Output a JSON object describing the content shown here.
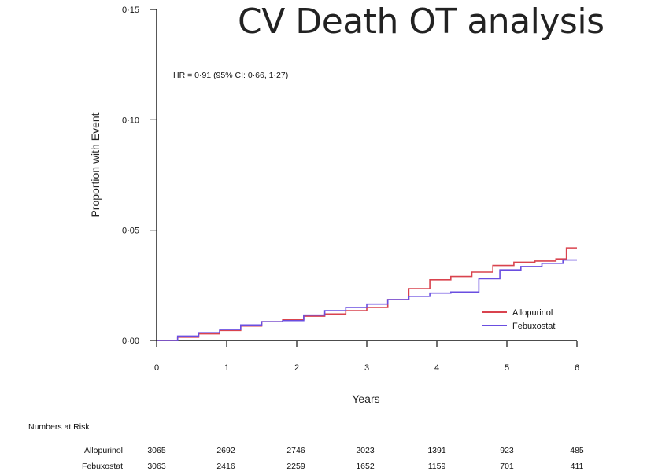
{
  "slide": {
    "title": "CV Death OT analysis"
  },
  "chart_data": {
    "type": "line",
    "title": "",
    "xlabel": "Years",
    "ylabel": "Proportion with Event",
    "xlim": [
      0,
      6
    ],
    "ylim": [
      0,
      0.15
    ],
    "x_ticks": [
      "0",
      "1",
      "2",
      "3",
      "4",
      "5",
      "6"
    ],
    "y_ticks": [
      "0·00",
      "0·05",
      "0·10",
      "0·15"
    ],
    "annotation": "HR = 0·91 (95% CI: 0·66, 1·27)",
    "legend_position": "bottom-right",
    "series": [
      {
        "name": "Allopurinol",
        "color": "#d9434e",
        "points": [
          [
            0,
            0
          ],
          [
            0.3,
            0.0015
          ],
          [
            0.6,
            0.003
          ],
          [
            0.9,
            0.0045
          ],
          [
            1.2,
            0.0065
          ],
          [
            1.5,
            0.0085
          ],
          [
            1.8,
            0.0095
          ],
          [
            2.1,
            0.011
          ],
          [
            2.4,
            0.012
          ],
          [
            2.7,
            0.0135
          ],
          [
            3.0,
            0.015
          ],
          [
            3.3,
            0.0185
          ],
          [
            3.6,
            0.0235
          ],
          [
            3.9,
            0.0275
          ],
          [
            4.2,
            0.029
          ],
          [
            4.5,
            0.031
          ],
          [
            4.8,
            0.034
          ],
          [
            5.1,
            0.0355
          ],
          [
            5.4,
            0.036
          ],
          [
            5.7,
            0.037
          ],
          [
            5.85,
            0.042
          ],
          [
            6.0,
            0.042
          ]
        ]
      },
      {
        "name": "Febuxostat",
        "color": "#6a4ee0",
        "points": [
          [
            0,
            0
          ],
          [
            0.3,
            0.002
          ],
          [
            0.6,
            0.0035
          ],
          [
            0.9,
            0.005
          ],
          [
            1.2,
            0.007
          ],
          [
            1.5,
            0.0085
          ],
          [
            1.8,
            0.009
          ],
          [
            2.1,
            0.0115
          ],
          [
            2.4,
            0.0135
          ],
          [
            2.7,
            0.015
          ],
          [
            3.0,
            0.0165
          ],
          [
            3.3,
            0.0185
          ],
          [
            3.6,
            0.02
          ],
          [
            3.9,
            0.0215
          ],
          [
            4.2,
            0.022
          ],
          [
            4.5,
            0.022
          ],
          [
            4.6,
            0.028
          ],
          [
            4.9,
            0.032
          ],
          [
            5.2,
            0.0335
          ],
          [
            5.5,
            0.035
          ],
          [
            5.8,
            0.0365
          ],
          [
            6.0,
            0.0365
          ]
        ]
      }
    ]
  },
  "risk_table": {
    "title": "Numbers at Risk",
    "rows": [
      {
        "name": "Allopurinol",
        "values": [
          "3065",
          "2692",
          "2746",
          "2023",
          "1391",
          "923",
          "485"
        ]
      },
      {
        "name": "Febuxostat",
        "values": [
          "3063",
          "2416",
          "2259",
          "1652",
          "1159",
          "701",
          "411"
        ]
      }
    ]
  }
}
